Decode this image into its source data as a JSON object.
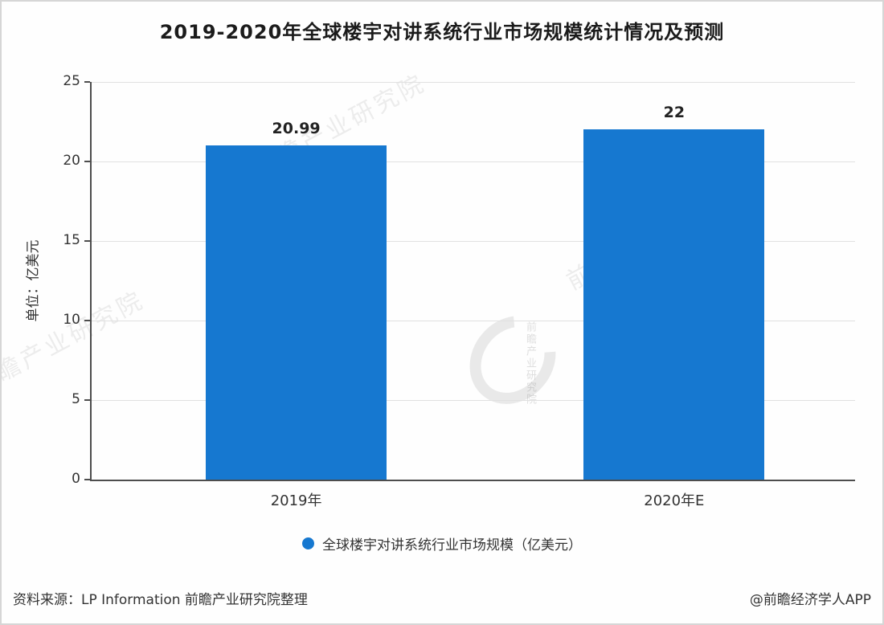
{
  "chart_data": {
    "type": "bar",
    "title": "2019-2020年全球楼宇对讲系统行业市场规模统计情况及预测",
    "categories": [
      "2019年",
      "2020年E"
    ],
    "values": [
      20.99,
      22
    ],
    "value_labels": [
      "20.99",
      "22"
    ],
    "xlabel": "",
    "ylabel": "单位：亿美元",
    "ylim": [
      0,
      25
    ],
    "yticks": [
      0,
      5,
      10,
      15,
      20,
      25
    ],
    "grid": "horizontal",
    "bar_color": "#1678d0",
    "legend": {
      "label": "全球楼宇对讲系统行业市场规模（亿美元）",
      "position": "bottom"
    }
  },
  "watermark": {
    "text": "前瞻产业研究院"
  },
  "footer": {
    "source": "资料来源：LP Information 前瞻产业研究院整理",
    "credit": "@前瞻经济学人APP"
  }
}
